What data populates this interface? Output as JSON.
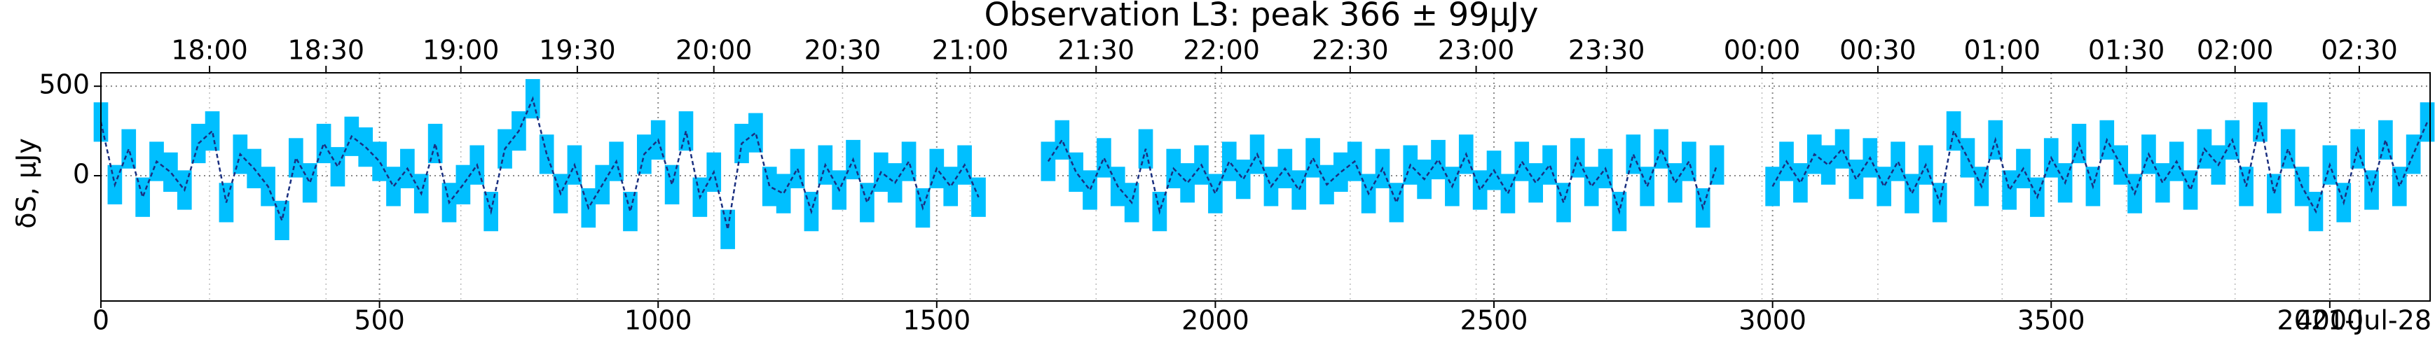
{
  "chart_data": {
    "type": "line",
    "title": "Observation L3: peak 366 ± 99μJy",
    "title_color": "#0000ee",
    "y_label": "δS, μJy",
    "annotation": "2021-Jul-28",
    "line_color": "#1a2f80",
    "band_color": "#00bfff",
    "grid": true,
    "error": 110,
    "xlim": [
      0,
      4180
    ],
    "ylim": [
      -700,
      575
    ],
    "xticks": [
      0,
      500,
      1000,
      1500,
      2000,
      2500,
      3000,
      3500,
      4000
    ],
    "yticks": [
      0,
      500
    ],
    "x2ticks": [
      {
        "value": 195,
        "label": "18:00"
      },
      {
        "value": 404,
        "label": "18:30"
      },
      {
        "value": 646,
        "label": "19:00"
      },
      {
        "value": 855,
        "label": "19:30"
      },
      {
        "value": 1100,
        "label": "20:00"
      },
      {
        "value": 1331,
        "label": "20:30"
      },
      {
        "value": 1560,
        "label": "21:00"
      },
      {
        "value": 1786,
        "label": "21:30"
      },
      {
        "value": 2011,
        "label": "22:00"
      },
      {
        "value": 2242,
        "label": "22:30"
      },
      {
        "value": 2468,
        "label": "23:00"
      },
      {
        "value": 2702,
        "label": "23:30"
      },
      {
        "value": 2981,
        "label": "00:00"
      },
      {
        "value": 3189,
        "label": "00:30"
      },
      {
        "value": 3412,
        "label": "01:00"
      },
      {
        "value": 3635,
        "label": "01:30"
      },
      {
        "value": 3830,
        "label": "02:00"
      },
      {
        "value": 4053,
        "label": "02:30"
      }
    ],
    "x": [
      0,
      25,
      50,
      75,
      100,
      125,
      150,
      175,
      200,
      225,
      250,
      275,
      300,
      325,
      350,
      375,
      400,
      425,
      450,
      475,
      500,
      525,
      550,
      575,
      600,
      625,
      650,
      675,
      700,
      725,
      750,
      775,
      800,
      825,
      850,
      875,
      900,
      925,
      950,
      975,
      1000,
      1025,
      1050,
      1075,
      1100,
      1125,
      1150,
      1175,
      1200,
      1225,
      1250,
      1275,
      1300,
      1325,
      1350,
      1375,
      1400,
      1425,
      1450,
      1475,
      1500,
      1525,
      1550,
      1575,
      1600,
      1625,
      1650,
      1675,
      1700,
      1725,
      1750,
      1775,
      1800,
      1825,
      1850,
      1875,
      1900,
      1925,
      1950,
      1975,
      2000,
      2025,
      2050,
      2075,
      2100,
      2125,
      2150,
      2175,
      2200,
      2225,
      2250,
      2275,
      2300,
      2325,
      2350,
      2375,
      2400,
      2425,
      2450,
      2475,
      2500,
      2525,
      2550,
      2575,
      2600,
      2625,
      2650,
      2675,
      2700,
      2725,
      2750,
      2775,
      2800,
      2825,
      2850,
      2875,
      2900,
      2925,
      2950,
      2975,
      3000,
      3025,
      3050,
      3075,
      3100,
      3125,
      3150,
      3175,
      3200,
      3225,
      3250,
      3275,
      3300,
      3325,
      3350,
      3375,
      3400,
      3425,
      3450,
      3475,
      3500,
      3525,
      3550,
      3575,
      3600,
      3625,
      3650,
      3675,
      3700,
      3725,
      3750,
      3775,
      3800,
      3825,
      3850,
      3875,
      3900,
      3925,
      3950,
      3975,
      4000,
      4025,
      4050,
      4075,
      4100,
      4125,
      4150,
      4175
    ],
    "values": [
      300,
      -50,
      150,
      -120,
      80,
      20,
      -80,
      180,
      250,
      -150,
      120,
      40,
      -60,
      -250,
      100,
      -40,
      180,
      50,
      220,
      160,
      80,
      -60,
      40,
      -100,
      180,
      -150,
      -50,
      60,
      -200,
      150,
      250,
      430,
      120,
      -100,
      60,
      -180,
      -50,
      80,
      -200,
      120,
      200,
      -50,
      250,
      -120,
      20,
      -300,
      180,
      240,
      -60,
      -100,
      40,
      -200,
      60,
      -80,
      90,
      -150,
      20,
      -40,
      80,
      -180,
      40,
      -60,
      60,
      -120,
      null,
      null,
      null,
      null,
      80,
      200,
      20,
      -80,
      100,
      -60,
      -150,
      150,
      -200,
      40,
      -40,
      60,
      -100,
      80,
      -20,
      120,
      -60,
      40,
      -80,
      100,
      -50,
      20,
      80,
      -100,
      40,
      -150,
      60,
      -20,
      90,
      -60,
      120,
      -80,
      30,
      -100,
      80,
      -40,
      60,
      -150,
      100,
      -60,
      40,
      -200,
      120,
      -60,
      150,
      -40,
      80,
      -180,
      60,
      null,
      null,
      null,
      -60,
      80,
      -40,
      120,
      60,
      150,
      -20,
      100,
      -60,
      80,
      -100,
      60,
      -150,
      250,
      100,
      -60,
      200,
      -80,
      40,
      -120,
      100,
      -40,
      180,
      -60,
      200,
      60,
      -100,
      120,
      -40,
      80,
      -80,
      150,
      60,
      200,
      -60,
      300,
      -100,
      150,
      -60,
      -200,
      60,
      -150,
      150,
      -80,
      200,
      -60,
      120,
      300
    ]
  }
}
